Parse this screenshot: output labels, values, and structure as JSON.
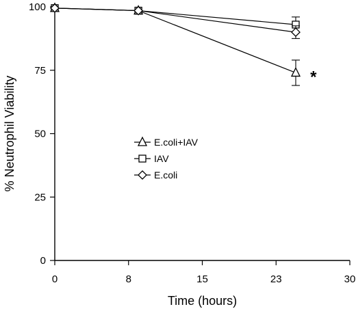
{
  "chart_data": {
    "type": "line",
    "title": "",
    "xlabel": "Time (hours)",
    "ylabel": "% Neutrophil Viability",
    "xlim": [
      0,
      30
    ],
    "ylim": [
      0,
      100
    ],
    "xticks": [
      0,
      7.5,
      15,
      22.5,
      30
    ],
    "xtick_labels": [
      "0",
      "8",
      "15",
      "23",
      "30"
    ],
    "yticks": [
      0,
      25,
      50,
      75,
      100
    ],
    "ytick_labels": [
      "0",
      "25",
      "50",
      "75",
      "100"
    ],
    "grid": false,
    "legend_position": "center-left",
    "series": [
      {
        "name": "E.coli+IAV",
        "marker": "triangle",
        "x": [
          0,
          8.5,
          24.5
        ],
        "y": [
          99.5,
          98.5,
          74
        ],
        "err": [
          0,
          0.5,
          5
        ]
      },
      {
        "name": "IAV",
        "marker": "square",
        "x": [
          0,
          8.5,
          24.5
        ],
        "y": [
          99.5,
          98.5,
          93
        ],
        "err": [
          0,
          0.5,
          3
        ]
      },
      {
        "name": "E.coli",
        "marker": "diamond",
        "x": [
          0,
          8.5,
          24.5
        ],
        "y": [
          99.5,
          98.5,
          90
        ],
        "err": [
          0,
          0.5,
          2.5
        ]
      }
    ],
    "annotations": [
      {
        "text": "*",
        "x": 26.3,
        "y": 74
      }
    ]
  }
}
